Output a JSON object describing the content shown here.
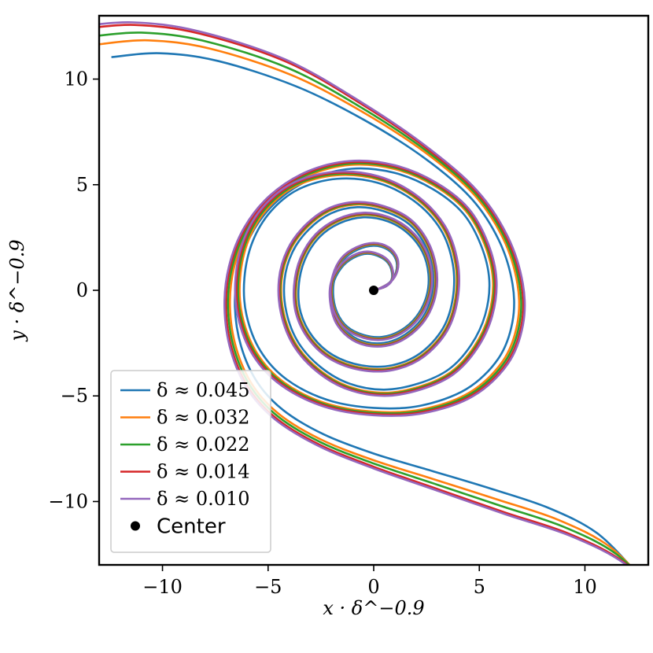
{
  "chart_data": {
    "type": "line",
    "title": "",
    "xlabel": "x · δ^−0.9",
    "ylabel": "y · δ^−0.9",
    "xlim": [
      -13,
      13
    ],
    "ylim": [
      -13,
      13
    ],
    "xticks": [
      -10,
      -5,
      0,
      5,
      10
    ],
    "yticks": [
      -10,
      -5,
      0,
      5,
      10
    ],
    "xtick_labels": [
      "−10",
      "−5",
      "0",
      "5",
      "10"
    ],
    "ytick_labels": [
      "−10",
      "−5",
      "0",
      "5",
      "10"
    ],
    "grid": false,
    "legend_position": "bottom-left",
    "center": {
      "name": "Center",
      "x": 0,
      "y": 0,
      "color": "#000000"
    },
    "series": [
      {
        "name": "δ ≈ 0.045",
        "color": "#1f77b4",
        "arm_scale": 0.92,
        "radial_scale": 0.96
      },
      {
        "name": "δ ≈ 0.032",
        "color": "#ff7f0e",
        "arm_scale": 0.97,
        "radial_scale": 0.99
      },
      {
        "name": "δ ≈ 0.022",
        "color": "#2ca02c",
        "arm_scale": 1.0,
        "radial_scale": 1.0
      },
      {
        "name": "δ ≈ 0.014",
        "color": "#d62728",
        "arm_scale": 1.03,
        "radial_scale": 1.01
      },
      {
        "name": "δ ≈ 0.010",
        "color": "#9467bd",
        "arm_scale": 1.04,
        "radial_scale": 1.02
      }
    ]
  }
}
